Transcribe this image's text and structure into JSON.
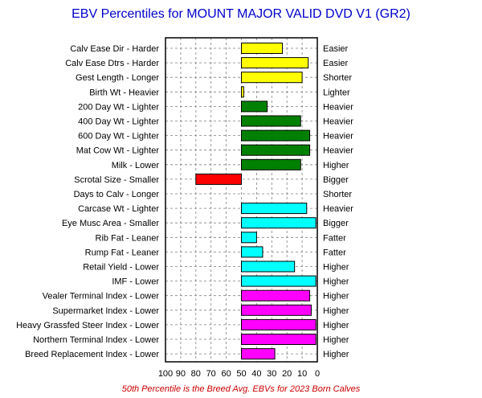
{
  "chart_data": {
    "type": "bar",
    "orientation": "horizontal",
    "title": "EBV Percentiles for MOUNT MAJOR VALID DVD V1 (GR2)",
    "footnote": "50th Percentile is the Breed Avg. EBVs for 2023 Born Calves",
    "xlim": [
      100,
      0
    ],
    "xticks": [
      100,
      90,
      80,
      70,
      60,
      50,
      40,
      30,
      20,
      10,
      0
    ],
    "baseline": 50,
    "grid": true,
    "colors": {
      "title": "#0000cc",
      "footnote": "#cc0000",
      "calving": "#ffff00",
      "growth": "#008000",
      "fertility": "#ff0000",
      "carcase": "#00ffff",
      "index": "#ff00ff",
      "bar_edge": "#000000",
      "grid": "#808080"
    },
    "rows": [
      {
        "left": "Calv Ease Dir - Harder",
        "right": "Easier",
        "value": 23,
        "color": "calving"
      },
      {
        "left": "Calv Ease Dtrs - Harder",
        "right": "Easier",
        "value": 6,
        "color": "calving"
      },
      {
        "left": "Gest Length - Longer",
        "right": "Shorter",
        "value": 10,
        "color": "calving"
      },
      {
        "left": "Birth Wt - Heavier",
        "right": "Lighter",
        "value": 48.5,
        "color": "calving"
      },
      {
        "left": "200 Day Wt - Lighter",
        "right": "Heavier",
        "value": 33,
        "color": "growth"
      },
      {
        "left": "400 Day Wt - Lighter",
        "right": "Heavier",
        "value": 11,
        "color": "growth"
      },
      {
        "left": "600 Day Wt - Lighter",
        "right": "Heavier",
        "value": 5,
        "color": "growth"
      },
      {
        "left": "Mat Cow Wt - Lighter",
        "right": "Heavier",
        "value": 5,
        "color": "growth"
      },
      {
        "left": "Milk - Lower",
        "right": "Higher",
        "value": 11,
        "color": "growth"
      },
      {
        "left": "Scrotal Size - Smaller",
        "right": "Bigger",
        "value": 80,
        "color": "fertility"
      },
      {
        "left": "Days to Calv - Longer",
        "right": "Shorter",
        "value": null,
        "color": "fertility"
      },
      {
        "left": "Carcase Wt - Lighter",
        "right": "Heavier",
        "value": 7,
        "color": "carcase"
      },
      {
        "left": "Eye Musc Area - Smaller",
        "right": "Bigger",
        "value": 1,
        "color": "carcase"
      },
      {
        "left": "Rib Fat - Leaner",
        "right": "Fatter",
        "value": 40,
        "color": "carcase"
      },
      {
        "left": "Rump Fat - Leaner",
        "right": "Fatter",
        "value": 36,
        "color": "carcase"
      },
      {
        "left": "Retail Yield - Lower",
        "right": "Higher",
        "value": 15,
        "color": "carcase"
      },
      {
        "left": "IMF - Lower",
        "right": "Higher",
        "value": 1,
        "color": "carcase"
      },
      {
        "left": "Vealer Terminal Index - Lower",
        "right": "Higher",
        "value": 5,
        "color": "index"
      },
      {
        "left": "Supermarket Index - Lower",
        "right": "Higher",
        "value": 4,
        "color": "index"
      },
      {
        "left": "Heavy Grassfed Steer Index - Lower",
        "right": "Higher",
        "value": 1,
        "color": "index"
      },
      {
        "left": "Northern Terminal Index - Lower",
        "right": "Higher",
        "value": 1,
        "color": "index"
      },
      {
        "left": "Breed Replacement Index - Lower",
        "right": "Higher",
        "value": 28,
        "color": "index"
      }
    ]
  }
}
